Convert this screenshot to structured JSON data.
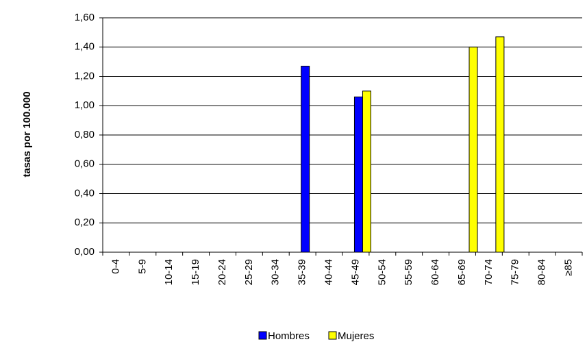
{
  "chart_data": {
    "type": "bar",
    "y_label": "tasas por 100.000",
    "categories": [
      "0-4",
      "5-9",
      "10-14",
      "15-19",
      "20-24",
      "25-29",
      "30-34",
      "35-39",
      "40-44",
      "45-49",
      "50-54",
      "55-59",
      "60-64",
      "65-69",
      "70-74",
      "75-79",
      "80-84",
      "≥85"
    ],
    "series": [
      {
        "name": "Hombres",
        "color": "#0000ff",
        "values": [
          0,
          0,
          0,
          0,
          0,
          0,
          0,
          1.27,
          0,
          1.06,
          0,
          0,
          0,
          0,
          0,
          0,
          0,
          0
        ]
      },
      {
        "name": "Mujeres",
        "color": "#ffff00",
        "values": [
          0,
          0,
          0,
          0,
          0,
          0,
          0,
          0,
          0,
          1.1,
          0,
          0,
          0,
          1.4,
          1.47,
          0,
          0,
          0
        ]
      }
    ],
    "ylim": [
      0,
      1.6
    ],
    "yticks": [
      {
        "value": 0,
        "label": "0,00"
      },
      {
        "value": 0.2,
        "label": "0,20"
      },
      {
        "value": 0.4,
        "label": "0,40"
      },
      {
        "value": 0.6,
        "label": "0,60"
      },
      {
        "value": 0.8,
        "label": "0,80"
      },
      {
        "value": 1.0,
        "label": "1,00"
      },
      {
        "value": 1.2,
        "label": "1,20"
      },
      {
        "value": 1.4,
        "label": "1,40"
      },
      {
        "value": 1.6,
        "label": "1,60"
      }
    ],
    "grid": true,
    "legend": "bottom"
  }
}
